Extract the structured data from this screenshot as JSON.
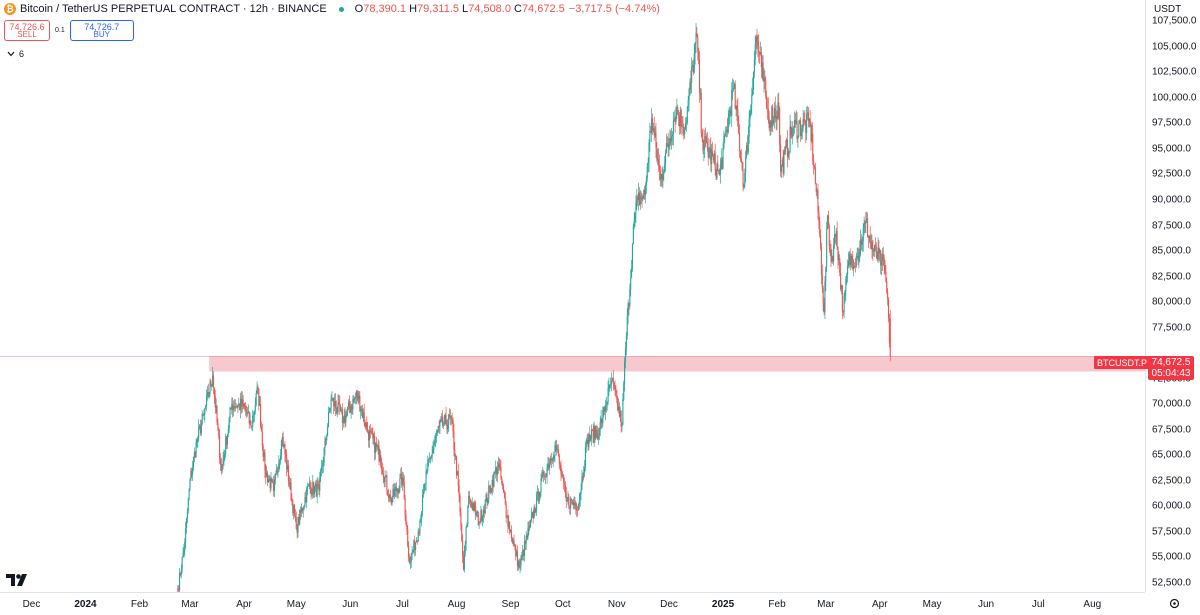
{
  "header": {
    "symbol_logo": "₿",
    "title": "Bitcoin / TetherUS PERPETUAL CONTRACT · 12h · BINANCE",
    "ohlc": [
      {
        "key": "O",
        "value": "78,390.1"
      },
      {
        "key": "H",
        "value": "79,311.5"
      },
      {
        "key": "L",
        "value": "74,508.0"
      },
      {
        "key": "C",
        "value": "74,672.5"
      }
    ],
    "change": "−3,717.5 (−4.74%)"
  },
  "trade": {
    "sell_price": "74,726.6",
    "sell_label": "SELL",
    "spread": "0.1",
    "buy_price": "74,726.7",
    "buy_label": "BUY"
  },
  "indicators": {
    "toggle_icon": "chevron-down-icon",
    "count": "6"
  },
  "price_axis": {
    "currency": "USDT",
    "labels": [
      "107,500.0",
      "105,000.0",
      "102,500.0",
      "100,000.0",
      "97,500.0",
      "95,000.0",
      "92,500.0",
      "90,000.0",
      "87,500.0",
      "85,000.0",
      "82,500.0",
      "80,000.0",
      "77,500.0",
      "72,500.0",
      "70,000.0",
      "67,500.0",
      "65,000.0",
      "62,500.0",
      "60,000.0",
      "57,500.0",
      "55,000.0",
      "52,500.0"
    ]
  },
  "last_price": {
    "symbol": "BTCUSDT.P",
    "price": "74,672.5",
    "countdown": "05:04:43"
  },
  "time_axis": {
    "labels": [
      {
        "text": "Dec",
        "bold": false
      },
      {
        "text": "2024",
        "bold": true
      },
      {
        "text": "Feb",
        "bold": false
      },
      {
        "text": "Mar",
        "bold": false
      },
      {
        "text": "Apr",
        "bold": false
      },
      {
        "text": "May",
        "bold": false
      },
      {
        "text": "Jun",
        "bold": false
      },
      {
        "text": "Jul",
        "bold": false
      },
      {
        "text": "Aug",
        "bold": false
      },
      {
        "text": "Sep",
        "bold": false
      },
      {
        "text": "Oct",
        "bold": false
      },
      {
        "text": "Nov",
        "bold": false
      },
      {
        "text": "Dec",
        "bold": false
      },
      {
        "text": "2025",
        "bold": true
      },
      {
        "text": "Feb",
        "bold": false
      },
      {
        "text": "Mar",
        "bold": false
      },
      {
        "text": "Apr",
        "bold": false
      },
      {
        "text": "May",
        "bold": false
      },
      {
        "text": "Jun",
        "bold": false
      },
      {
        "text": "Jul",
        "bold": false
      },
      {
        "text": "Aug",
        "bold": false
      }
    ]
  },
  "colors": {
    "up": "#26a69a",
    "down": "#ef5350",
    "zone": "#f8c8cf",
    "price_line": "#f23645"
  },
  "zone": {
    "low": 73200,
    "high": 74700
  },
  "chart_data": {
    "type": "candlestick",
    "interval": "12h",
    "y_range": [
      51800,
      109200
    ],
    "anchors": [
      {
        "date": "2024-02-23",
        "close": 51800
      },
      {
        "date": "2024-02-27",
        "close": 56500
      },
      {
        "date": "2024-03-01",
        "close": 62500
      },
      {
        "date": "2024-03-05",
        "close": 66500
      },
      {
        "date": "2024-03-09",
        "close": 69000
      },
      {
        "date": "2024-03-14",
        "close": 72800
      },
      {
        "date": "2024-03-19",
        "close": 63500
      },
      {
        "date": "2024-03-25",
        "close": 70000
      },
      {
        "date": "2024-04-01",
        "close": 69800
      },
      {
        "date": "2024-04-05",
        "close": 67800
      },
      {
        "date": "2024-04-09",
        "close": 71500
      },
      {
        "date": "2024-04-13",
        "close": 63500
      },
      {
        "date": "2024-04-18",
        "close": 61500
      },
      {
        "date": "2024-04-23",
        "close": 66800
      },
      {
        "date": "2024-05-01",
        "close": 57800
      },
      {
        "date": "2024-05-08",
        "close": 62000
      },
      {
        "date": "2024-05-14",
        "close": 61500
      },
      {
        "date": "2024-05-21",
        "close": 70500
      },
      {
        "date": "2024-05-28",
        "close": 68500
      },
      {
        "date": "2024-06-05",
        "close": 71000
      },
      {
        "date": "2024-06-11",
        "close": 67300
      },
      {
        "date": "2024-06-18",
        "close": 65000
      },
      {
        "date": "2024-06-24",
        "close": 60500
      },
      {
        "date": "2024-07-01",
        "close": 62800
      },
      {
        "date": "2024-07-05",
        "close": 54500
      },
      {
        "date": "2024-07-10",
        "close": 57500
      },
      {
        "date": "2024-07-15",
        "close": 63500
      },
      {
        "date": "2024-07-22",
        "close": 67800
      },
      {
        "date": "2024-07-29",
        "close": 68500
      },
      {
        "date": "2024-08-02",
        "close": 62000
      },
      {
        "date": "2024-08-05",
        "close": 53800
      },
      {
        "date": "2024-08-08",
        "close": 61000
      },
      {
        "date": "2024-08-14",
        "close": 58500
      },
      {
        "date": "2024-08-25",
        "close": 64200
      },
      {
        "date": "2024-08-30",
        "close": 59000
      },
      {
        "date": "2024-09-06",
        "close": 54000
      },
      {
        "date": "2024-09-12",
        "close": 58000
      },
      {
        "date": "2024-09-20",
        "close": 63000
      },
      {
        "date": "2024-09-27",
        "close": 66000
      },
      {
        "date": "2024-10-03",
        "close": 60500
      },
      {
        "date": "2024-10-10",
        "close": 60200
      },
      {
        "date": "2024-10-15",
        "close": 66500
      },
      {
        "date": "2024-10-22",
        "close": 67500
      },
      {
        "date": "2024-10-29",
        "close": 72300
      },
      {
        "date": "2024-11-04",
        "close": 68000
      },
      {
        "date": "2024-11-06",
        "close": 75500
      },
      {
        "date": "2024-11-11",
        "close": 88000
      },
      {
        "date": "2024-11-13",
        "close": 90000
      },
      {
        "date": "2024-11-17",
        "close": 90500
      },
      {
        "date": "2024-11-21",
        "close": 98000
      },
      {
        "date": "2024-11-26",
        "close": 92000
      },
      {
        "date": "2024-12-05",
        "close": 99000
      },
      {
        "date": "2024-12-10",
        "close": 97000
      },
      {
        "date": "2024-12-17",
        "close": 106000
      },
      {
        "date": "2024-12-20",
        "close": 96000
      },
      {
        "date": "2024-12-30",
        "close": 92500
      },
      {
        "date": "2025-01-07",
        "close": 101000
      },
      {
        "date": "2025-01-13",
        "close": 91500
      },
      {
        "date": "2025-01-20",
        "close": 106000
      },
      {
        "date": "2025-01-23",
        "close": 103000
      },
      {
        "date": "2025-01-27",
        "close": 98000
      },
      {
        "date": "2025-02-02",
        "close": 99000
      },
      {
        "date": "2025-02-03",
        "close": 92800
      },
      {
        "date": "2025-02-10",
        "close": 97000
      },
      {
        "date": "2025-02-20",
        "close": 97500
      },
      {
        "date": "2025-02-25",
        "close": 88000
      },
      {
        "date": "2025-02-28",
        "close": 79000
      },
      {
        "date": "2025-03-02",
        "close": 88500
      },
      {
        "date": "2025-03-04",
        "close": 84000
      },
      {
        "date": "2025-03-07",
        "close": 87000
      },
      {
        "date": "2025-03-11",
        "close": 79000
      },
      {
        "date": "2025-03-14",
        "close": 84000
      },
      {
        "date": "2025-03-19",
        "close": 84500
      },
      {
        "date": "2025-03-24",
        "close": 87800
      },
      {
        "date": "2025-03-28",
        "close": 85000
      },
      {
        "date": "2025-04-02",
        "close": 84000
      },
      {
        "date": "2025-04-04",
        "close": 83000
      },
      {
        "date": "2025-04-06",
        "close": 78390
      },
      {
        "date": "2025-04-07",
        "close": 74672
      }
    ]
  }
}
